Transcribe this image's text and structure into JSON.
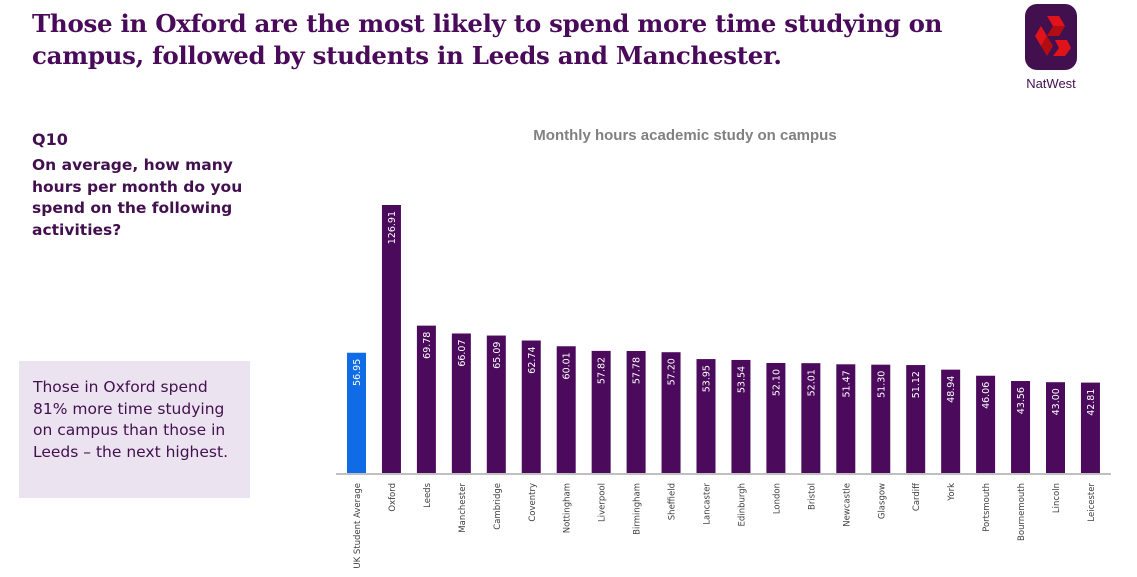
{
  "header": {
    "headline": "Those in Oxford are the most likely to spend more time studying on campus, followed by students in Leeds and Manchester.",
    "logo_icon": "natwest-logo-icon",
    "logo_text": "NatWest"
  },
  "question": {
    "label": "Q10",
    "text": "On average, how many hours per month do you spend on the following activities?"
  },
  "callout": {
    "text": "Those in Oxford spend 81% more time studying on campus than those in Leeds – the next highest."
  },
  "colors": {
    "brand_purple": "#42104e",
    "bar_purple": "#4b0a5c",
    "highlight_blue": "#0f6ce6",
    "callout_bg": "#ece3f0",
    "axis_gray": "#bfbfbf"
  },
  "chart_data": {
    "type": "bar",
    "title": "Monthly hours academic study on campus",
    "xlabel": "",
    "ylabel": "",
    "ylim": [
      0,
      130
    ],
    "grid": false,
    "legend": "none",
    "categories": [
      "UK Student Average",
      "Oxford",
      "Leeds",
      "Manchester",
      "Cambridge",
      "Coventry",
      "Nottingham",
      "Liverpool",
      "Birmingham",
      "Sheffield",
      "Lancaster",
      "Edinburgh",
      "London",
      "Bristol",
      "Newcastle",
      "Glasgow",
      "Cardiff",
      "York",
      "Portsmouth",
      "Bournemouth",
      "Lincoln",
      "Leicester"
    ],
    "values": [
      56.95,
      126.91,
      69.78,
      66.07,
      65.09,
      62.74,
      60.01,
      57.82,
      57.78,
      57.2,
      53.95,
      53.54,
      52.1,
      52.01,
      51.47,
      51.3,
      51.12,
      48.94,
      46.06,
      43.56,
      43.0,
      42.81
    ],
    "data_labels": [
      "56.95",
      "126.91",
      "69.78",
      "66.07",
      "65.09",
      "62.74",
      "60.01",
      "57.82",
      "57.78",
      "57.20",
      "53.95",
      "53.54",
      "52.10",
      "52.01",
      "51.47",
      "51.30",
      "51.12",
      "48.94",
      "46.06",
      "43.56",
      "43.00",
      "42.81"
    ],
    "highlight_index": 0
  }
}
